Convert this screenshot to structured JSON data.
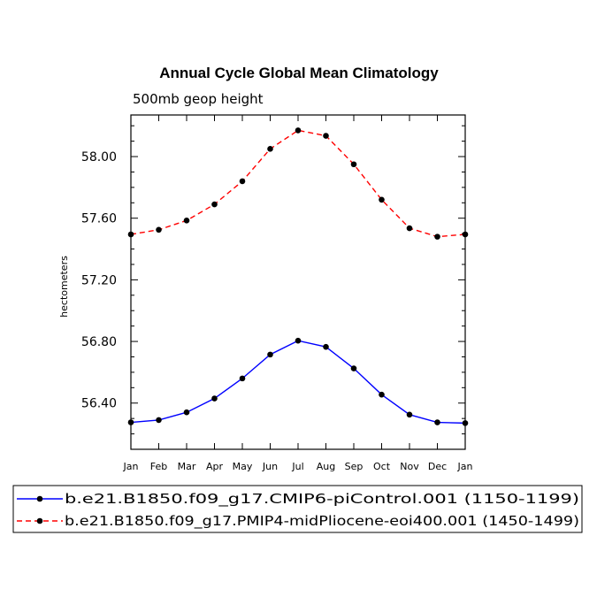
{
  "chart_data": {
    "type": "line",
    "title": "Annual Cycle Global Mean Climatology",
    "subtitle": "500mb geop height",
    "xlabel": "",
    "ylabel": "hectometers",
    "categories": [
      "Jan",
      "Feb",
      "Mar",
      "Apr",
      "May",
      "Jun",
      "Jul",
      "Aug",
      "Sep",
      "Oct",
      "Nov",
      "Dec",
      "Jan"
    ],
    "ylim": [
      56.1,
      58.27
    ],
    "yticks": [
      "58.00",
      "57.60",
      "57.20",
      "56.80",
      "56.40"
    ],
    "ytick_values": [
      58.0,
      57.6,
      57.2,
      56.8,
      56.4
    ],
    "series": [
      {
        "name": "b.e21.B1850.f09_g17.CMIP6-piControl.001 (1150-1199)",
        "color": "#0000ff",
        "dash": "solid",
        "values": [
          56.275,
          56.29,
          56.34,
          56.43,
          56.56,
          56.715,
          56.805,
          56.765,
          56.625,
          56.455,
          56.325,
          56.275,
          56.27
        ]
      },
      {
        "name": "b.e21.B1850.f09_g17.PMIP4-midPliocene-eoi400.001 (1450-1499)",
        "color": "#ff0000",
        "dash": "dashed",
        "values": [
          57.495,
          57.525,
          57.585,
          57.69,
          57.84,
          58.05,
          58.17,
          58.135,
          57.95,
          57.72,
          57.535,
          57.48,
          57.495
        ]
      }
    ],
    "legend_position": "bottom"
  }
}
